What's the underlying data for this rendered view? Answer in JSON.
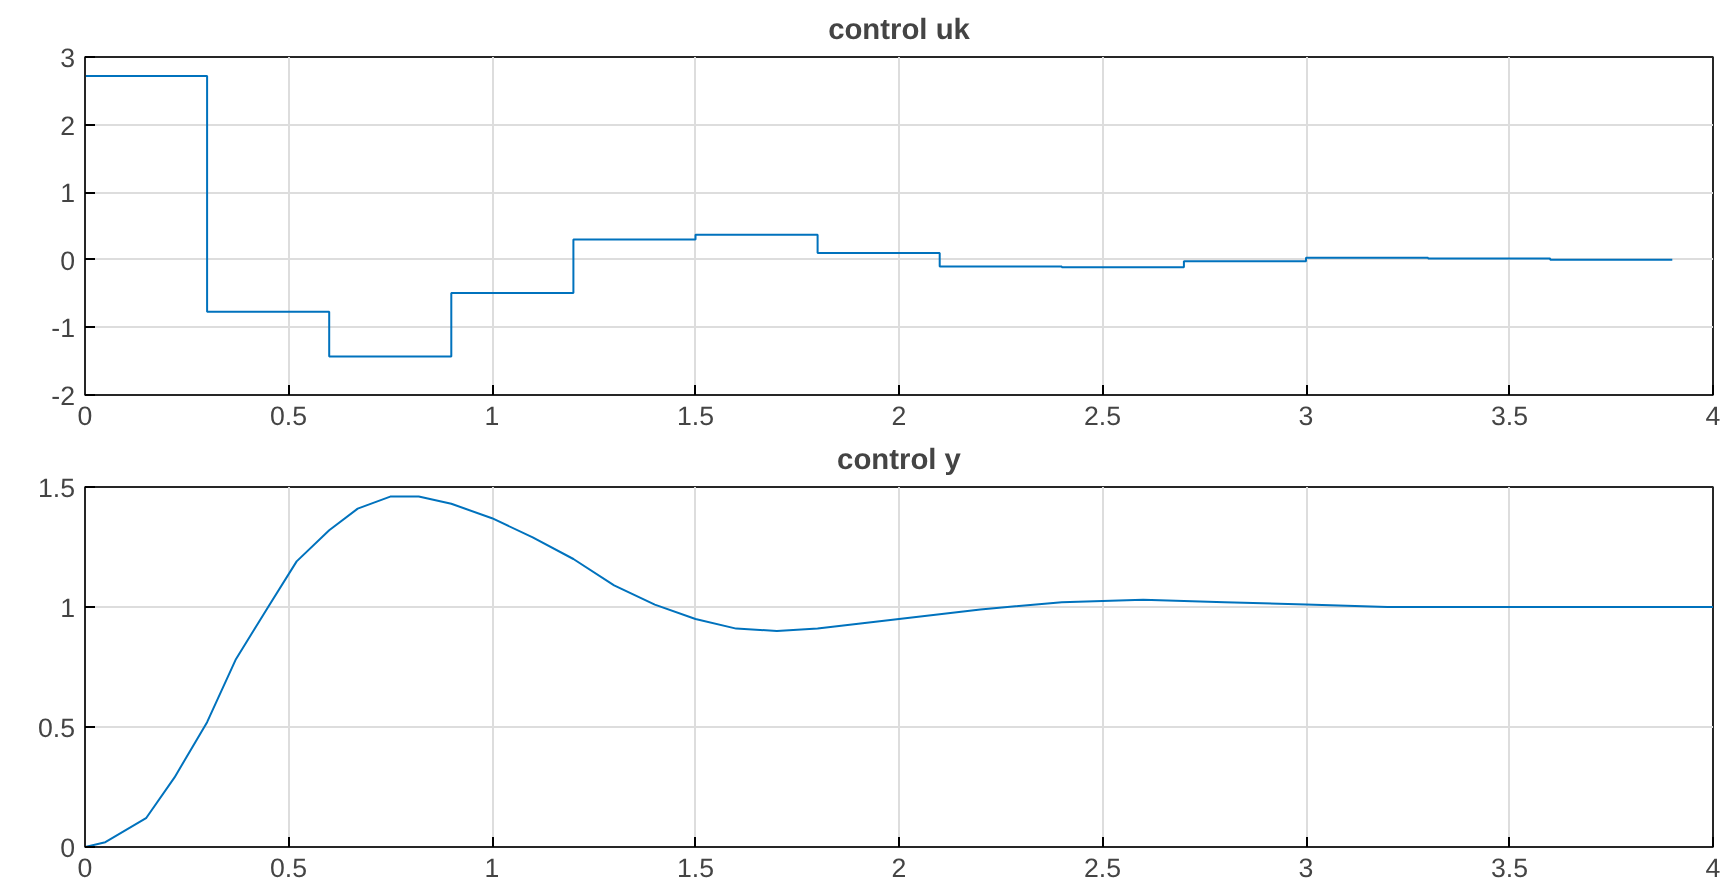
{
  "chart_data": [
    {
      "type": "step",
      "title": "control uk",
      "x": [
        0,
        0.3,
        0.6,
        0.9,
        1.2,
        1.5,
        1.8,
        2.1,
        2.4,
        2.7,
        3.0,
        3.3,
        3.6,
        3.9
      ],
      "series": [
        {
          "color": "#0072bd",
          "values": [
            2.72,
            -0.77,
            -1.43,
            -0.49,
            0.3,
            0.37,
            0.1,
            -0.1,
            -0.11,
            -0.02,
            0.03,
            0.02,
            0.0,
            0.0
          ]
        }
      ],
      "xlim": [
        0,
        4
      ],
      "xticks": [
        0,
        0.5,
        1,
        1.5,
        2,
        2.5,
        3,
        3.5,
        4
      ],
      "ylim": [
        -2,
        3
      ],
      "yticks": [
        -2,
        -1,
        0,
        1,
        2,
        3
      ],
      "grid": true
    },
    {
      "type": "line",
      "title": "control y",
      "x": [
        0,
        0.05,
        0.15,
        0.22,
        0.3,
        0.37,
        0.45,
        0.52,
        0.6,
        0.67,
        0.75,
        0.82,
        0.9,
        1.0,
        1.1,
        1.2,
        1.3,
        1.4,
        1.5,
        1.6,
        1.7,
        1.8,
        1.9,
        2.0,
        2.2,
        2.4,
        2.6,
        2.8,
        3.0,
        3.2,
        3.5,
        4.0
      ],
      "series": [
        {
          "color": "#0072bd",
          "values": [
            0,
            0.02,
            0.12,
            0.29,
            0.52,
            0.78,
            1.0,
            1.19,
            1.32,
            1.41,
            1.46,
            1.46,
            1.43,
            1.37,
            1.29,
            1.2,
            1.09,
            1.01,
            0.95,
            0.91,
            0.9,
            0.91,
            0.93,
            0.95,
            0.99,
            1.02,
            1.03,
            1.02,
            1.01,
            1.0,
            1.0,
            1.0
          ]
        }
      ],
      "xlim": [
        0,
        4
      ],
      "xticks": [
        0,
        0.5,
        1,
        1.5,
        2,
        2.5,
        3,
        3.5,
        4
      ],
      "ylim": [
        0,
        1.5
      ],
      "yticks": [
        0,
        0.5,
        1,
        1.5
      ],
      "grid": true
    }
  ]
}
